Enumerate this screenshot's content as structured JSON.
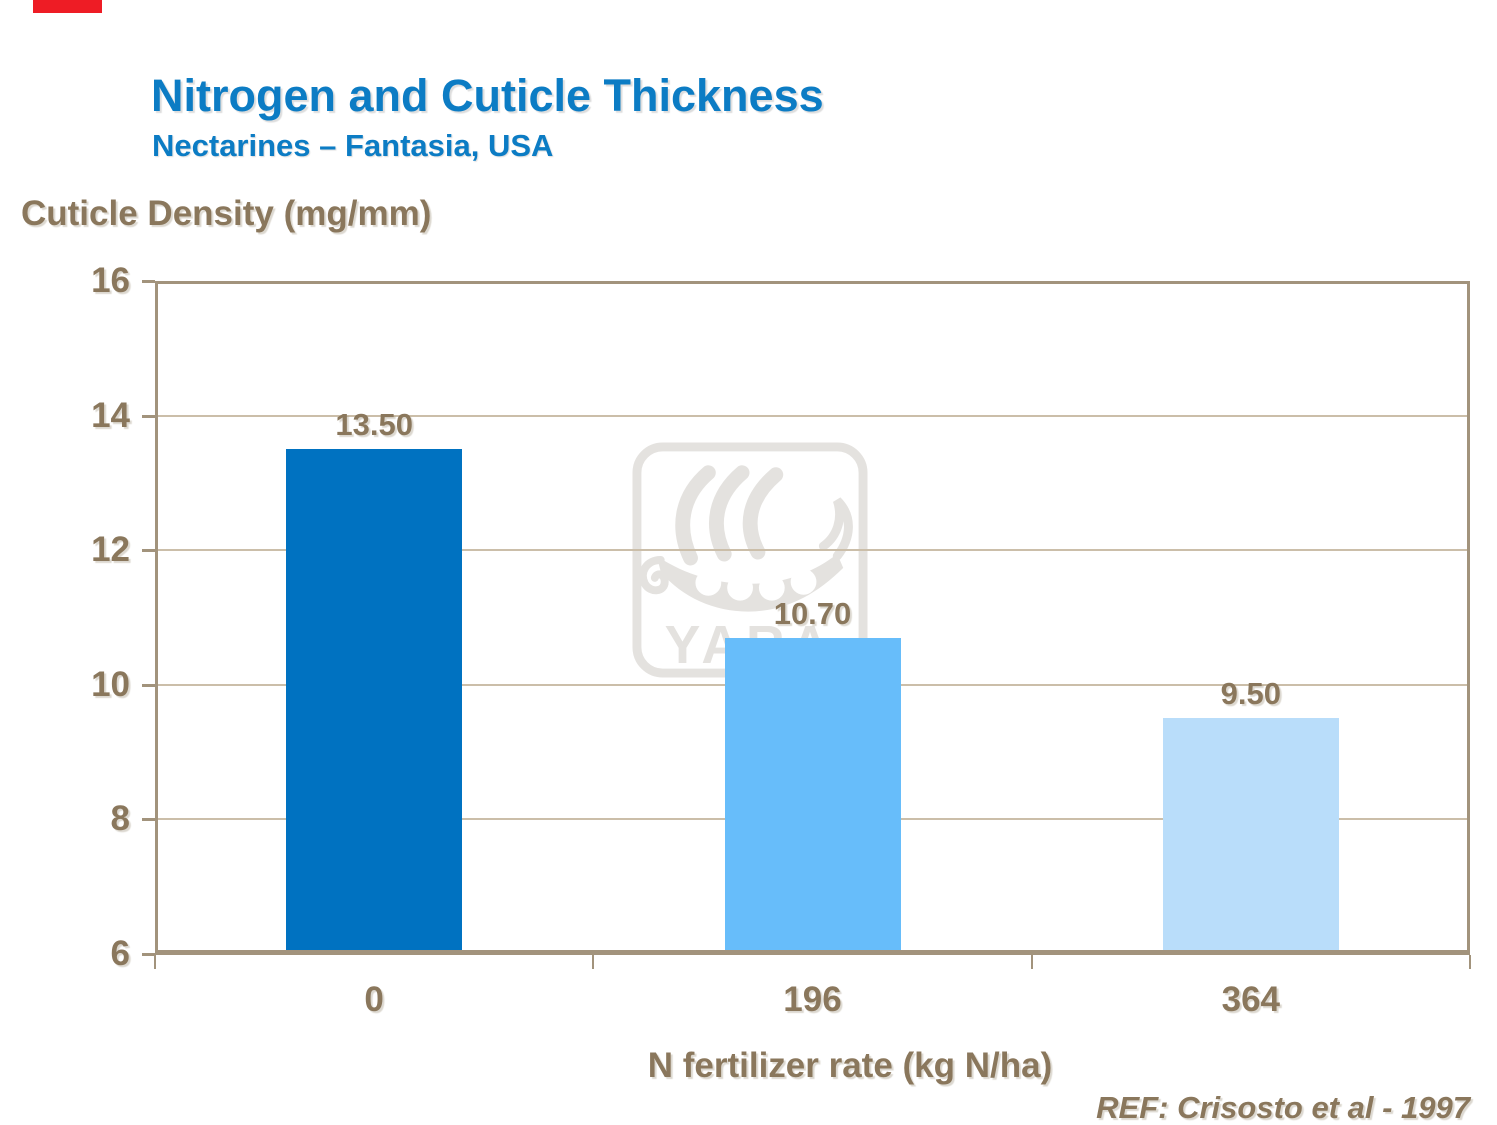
{
  "page": {
    "background": "#FFFFFF"
  },
  "accent_bar": {
    "color": "#EE1C25"
  },
  "header": {
    "title": "Nitrogen and Cuticle Thickness",
    "subtitle": "Nectarines – Fantasia, USA",
    "title_color": "#0C7CC4"
  },
  "chart_data": {
    "type": "bar",
    "ylabel": "Cuticle Density (mg/mm)",
    "xlabel": "N fertilizer rate (kg N/ha)",
    "categories": [
      "0",
      "196",
      "364"
    ],
    "values": [
      13.5,
      10.7,
      9.5
    ],
    "value_labels": [
      "13.50",
      "10.70",
      "9.50"
    ],
    "bar_colors": [
      "#0072C1",
      "#67BDFA",
      "#B9DDFA"
    ],
    "ylim": [
      6,
      16
    ],
    "yticks": [
      16,
      14,
      12,
      10,
      8,
      6
    ],
    "grid": true,
    "legend": "none",
    "text_color": "#8A775C",
    "frame_color": "#A2937C",
    "gridline_color": "#CBBEA9"
  },
  "watermark": {
    "label": "YARA",
    "icon": "yara-viking-ship-logo",
    "color": "#E4E2DF"
  },
  "footer": {
    "reference": "REF: Crisosto et al - 1997"
  }
}
